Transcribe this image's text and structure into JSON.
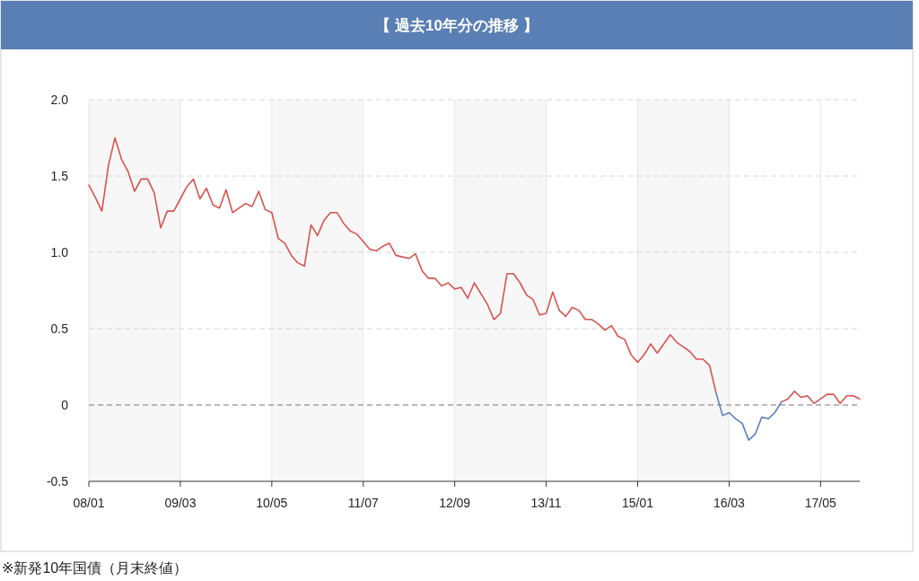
{
  "chart_data": {
    "type": "line",
    "title": "【 過去10年分の推移 】",
    "annotations": [
      "※新発10年国債（月末終値）"
    ],
    "x": [
      "2008-01",
      "2008-02",
      "2008-03",
      "2008-04",
      "2008-05",
      "2008-06",
      "2008-07",
      "2008-08",
      "2008-09",
      "2008-10",
      "2008-11",
      "2008-12",
      "2009-01",
      "2009-02",
      "2009-03",
      "2009-04",
      "2009-05",
      "2009-06",
      "2009-07",
      "2009-08",
      "2009-09",
      "2009-10",
      "2009-11",
      "2009-12",
      "2010-01",
      "2010-02",
      "2010-03",
      "2010-04",
      "2010-05",
      "2010-06",
      "2010-07",
      "2010-08",
      "2010-09",
      "2010-10",
      "2010-11",
      "2010-12",
      "2011-01",
      "2011-02",
      "2011-03",
      "2011-04",
      "2011-05",
      "2011-06",
      "2011-07",
      "2011-08",
      "2011-09",
      "2011-10",
      "2011-11",
      "2011-12",
      "2012-01",
      "2012-02",
      "2012-03",
      "2012-04",
      "2012-05",
      "2012-06",
      "2012-07",
      "2012-08",
      "2012-09",
      "2012-10",
      "2012-11",
      "2012-12",
      "2013-01",
      "2013-02",
      "2013-03",
      "2013-04",
      "2013-05",
      "2013-06",
      "2013-07",
      "2013-08",
      "2013-09",
      "2013-10",
      "2013-11",
      "2013-12",
      "2014-01",
      "2014-02",
      "2014-03",
      "2014-04",
      "2014-05",
      "2014-06",
      "2014-07",
      "2014-08",
      "2014-09",
      "2014-10",
      "2014-11",
      "2014-12",
      "2015-01",
      "2015-02",
      "2015-03",
      "2015-04",
      "2015-05",
      "2015-06",
      "2015-07",
      "2015-08",
      "2015-09",
      "2015-10",
      "2015-11",
      "2015-12",
      "2016-01",
      "2016-02",
      "2016-03",
      "2016-04",
      "2016-05",
      "2016-06",
      "2016-07",
      "2016-08",
      "2016-09",
      "2016-10",
      "2016-11",
      "2016-12",
      "2017-01",
      "2017-02",
      "2017-03",
      "2017-04",
      "2017-05",
      "2017-06",
      "2017-07",
      "2017-08",
      "2017-09",
      "2017-10",
      "2017-11"
    ],
    "series": [
      {
        "color": "#d9534f",
        "values": [
          1.44,
          1.36,
          1.27,
          1.57,
          1.75,
          1.61,
          1.53,
          1.4,
          1.48,
          1.48,
          1.39,
          1.16,
          1.27,
          1.27,
          1.35,
          1.43,
          1.48,
          1.35,
          1.42,
          1.31,
          1.29,
          1.41,
          1.26,
          1.29,
          1.32,
          1.3,
          1.4,
          1.28,
          1.26,
          1.09,
          1.06,
          0.98,
          0.93,
          0.91,
          1.18,
          1.11,
          1.21,
          1.26,
          1.26,
          1.19,
          1.14,
          1.12,
          1.07,
          1.02,
          1.01,
          1.04,
          1.06,
          0.98,
          0.97,
          0.96,
          0.99,
          0.88,
          0.83,
          0.83,
          0.78,
          0.8,
          0.76,
          0.77,
          0.7,
          0.8,
          0.73,
          0.66,
          0.56,
          0.6,
          0.86,
          0.86,
          0.8,
          0.72,
          0.69,
          0.59,
          0.6,
          0.74,
          0.62,
          0.58,
          0.64,
          0.62,
          0.56,
          0.56,
          0.53,
          0.49,
          0.52,
          0.45,
          0.43,
          0.33,
          0.28,
          0.33,
          0.4,
          0.34,
          0.4,
          0.46,
          0.41,
          0.38,
          0.35,
          0.3,
          0.3,
          0.26,
          0.08,
          null,
          null,
          null,
          null,
          null,
          null,
          null,
          null,
          null,
          0.02,
          0.04,
          0.09,
          0.05,
          0.06,
          0.01,
          0.04,
          0.07,
          0.07,
          0.01,
          0.06,
          0.06,
          0.04
        ]
      },
      {
        "color": "#5b7fbf",
        "values": [
          null,
          null,
          null,
          null,
          null,
          null,
          null,
          null,
          null,
          null,
          null,
          null,
          null,
          null,
          null,
          null,
          null,
          null,
          null,
          null,
          null,
          null,
          null,
          null,
          null,
          null,
          null,
          null,
          null,
          null,
          null,
          null,
          null,
          null,
          null,
          null,
          null,
          null,
          null,
          null,
          null,
          null,
          null,
          null,
          null,
          null,
          null,
          null,
          null,
          null,
          null,
          null,
          null,
          null,
          null,
          null,
          null,
          null,
          null,
          null,
          null,
          null,
          null,
          null,
          null,
          null,
          null,
          null,
          null,
          null,
          null,
          null,
          null,
          null,
          null,
          null,
          null,
          null,
          null,
          null,
          null,
          null,
          null,
          null,
          null,
          null,
          null,
          null,
          null,
          null,
          null,
          null,
          null,
          null,
          null,
          null,
          0.08,
          -0.07,
          -0.05,
          -0.09,
          -0.12,
          -0.23,
          -0.19,
          -0.08,
          -0.09,
          -0.05,
          0.02,
          null,
          null,
          null,
          null,
          null,
          null,
          null,
          null,
          null,
          null,
          null,
          null
        ]
      }
    ],
    "xlim": [
      "2008-01",
      "2017-11"
    ],
    "xticks": [
      {
        "value": "2008-01",
        "label": "08/01"
      },
      {
        "value": "2009-03",
        "label": "09/03"
      },
      {
        "value": "2010-05",
        "label": "10/05"
      },
      {
        "value": "2011-07",
        "label": "11/07"
      },
      {
        "value": "2012-09",
        "label": "12/09"
      },
      {
        "value": "2013-11",
        "label": "13/11"
      },
      {
        "value": "2015-01",
        "label": "15/01"
      },
      {
        "value": "2016-03",
        "label": "16/03"
      },
      {
        "value": "2017-05",
        "label": "17/05"
      }
    ],
    "ylim": [
      -0.5,
      2.0
    ],
    "yticks": [
      -0.5,
      0,
      0.5,
      {
        "value": 1,
        "label": "1.0"
      },
      1.5,
      {
        "value": 2,
        "label": "2.0"
      }
    ],
    "grid": true,
    "marker": "none",
    "line_style": "solid",
    "bands": [
      {
        "axis": "x",
        "from": "2008-01",
        "to": "2009-03",
        "color": "#f7f7f7"
      },
      {
        "axis": "x",
        "from": "2010-05",
        "to": "2011-07",
        "color": "#f7f7f7"
      },
      {
        "axis": "x",
        "from": "2012-09",
        "to": "2013-11",
        "color": "#f7f7f7"
      },
      {
        "axis": "x",
        "from": "2015-01",
        "to": "2016-03",
        "color": "#f7f7f7"
      }
    ],
    "ref_lines": [
      {
        "axis": "y",
        "value": 0,
        "color": "#888888",
        "line_style": "dashed"
      }
    ]
  }
}
